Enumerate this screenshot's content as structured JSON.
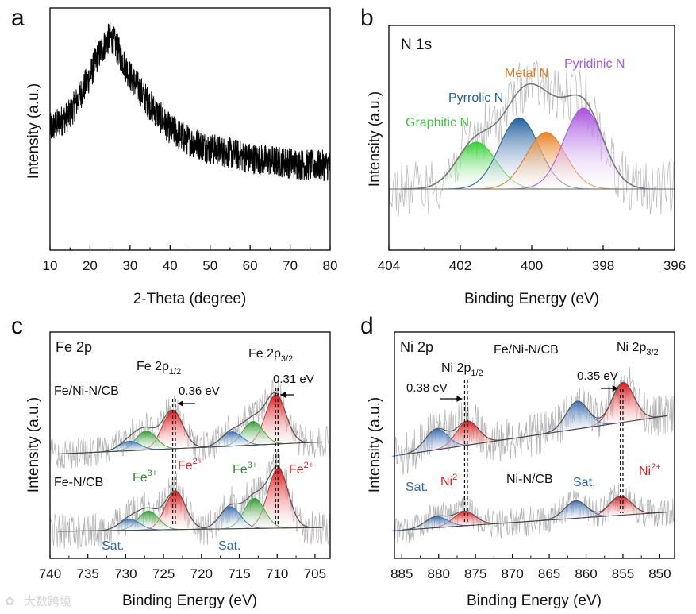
{
  "watermark": {
    "text": "大数跨境"
  },
  "chart_data": [
    {
      "panel": "a",
      "type": "line",
      "xlabel": "2-Theta (degree)",
      "ylabel": "Intensity (a.u.)",
      "xlim": [
        10,
        80
      ],
      "xticks": [
        "10",
        "20",
        "30",
        "40",
        "50",
        "60",
        "70",
        "80"
      ],
      "series": [
        {
          "x": [
            10,
            15,
            20,
            22,
            24,
            25,
            26,
            28,
            30,
            35,
            40,
            45,
            50,
            55,
            60,
            65,
            70,
            75,
            80
          ],
          "y": [
            0.5,
            0.56,
            0.72,
            0.8,
            0.86,
            0.88,
            0.86,
            0.79,
            0.72,
            0.6,
            0.5,
            0.45,
            0.42,
            0.4,
            0.38,
            0.37,
            0.36,
            0.35,
            0.35
          ]
        }
      ],
      "color": "#000000"
    },
    {
      "panel": "b",
      "type": "line",
      "title": "N 1s",
      "xlabel": "Binding Energy (eV)",
      "ylabel": "Intensity (a.u.)",
      "xlim": [
        404,
        396
      ],
      "xticks": [
        "404",
        "402",
        "400",
        "398",
        "396"
      ],
      "series": [
        {
          "name": "Graphitic N",
          "center": 401.55,
          "height": 0.58,
          "color": "#3ec93e"
        },
        {
          "name": "Pyrrolic N",
          "center": 400.35,
          "height": 0.88,
          "color": "#1f5e9c"
        },
        {
          "name": "Metal N",
          "center": 399.6,
          "height": 0.7,
          "color": "#e07a22"
        },
        {
          "name": "Pyridinic N",
          "center": 398.55,
          "height": 1.0,
          "color": "#a855e0"
        }
      ],
      "envelope_color": "#777777"
    },
    {
      "panel": "c",
      "type": "line",
      "title": "Fe 2p",
      "xlabel": "Binding Energy (eV)",
      "ylabel": "Intensity (a.u.)",
      "xlim": [
        740,
        703
      ],
      "xticks": [
        "740",
        "735",
        "730",
        "725",
        "720",
        "715",
        "710",
        "705"
      ],
      "samples": [
        "Fe/Ni-N/CB",
        "Fe-N/CB"
      ],
      "peaks": {
        "Fe/Ni-N/CB": [
          {
            "name": "Fe2+",
            "center": 723.8,
            "color": "#e02020"
          },
          {
            "name": "Fe3+",
            "center": 727.3,
            "color": "#3aa53a"
          },
          {
            "name": "Sat.",
            "center": 729.5,
            "color": "#3a73b8"
          },
          {
            "name": "Fe2+",
            "center": 710.2,
            "color": "#e02020"
          },
          {
            "name": "Fe3+",
            "center": 713.2,
            "color": "#3aa53a"
          },
          {
            "name": "Sat.",
            "center": 716.0,
            "color": "#3a73b8"
          }
        ],
        "Fe-N/CB": [
          {
            "name": "Fe2+",
            "center": 723.44,
            "color": "#e02020"
          },
          {
            "name": "Fe3+",
            "center": 727.0,
            "color": "#3aa53a"
          },
          {
            "name": "Sat.",
            "center": 729.5,
            "color": "#3a73b8"
          },
          {
            "name": "Fe2+",
            "center": 709.89,
            "color": "#e02020"
          },
          {
            "name": "Fe3+",
            "center": 713.0,
            "color": "#3aa53a"
          },
          {
            "name": "Sat.",
            "center": 716.2,
            "color": "#3a73b8"
          }
        ]
      },
      "annotations": [
        {
          "text": "Fe 2p",
          "sub": "1/2"
        },
        {
          "text": "Fe 2p",
          "sub": "3/2"
        },
        {
          "text": "0.36 eV"
        },
        {
          "text": "0.31 eV"
        },
        {
          "text": "Fe",
          "sup": "3+"
        },
        {
          "text": "Fe",
          "sup": "2+"
        },
        {
          "text": "Sat."
        }
      ]
    },
    {
      "panel": "d",
      "type": "line",
      "title": "Ni 2p",
      "xlabel": "Binding Energy (eV)",
      "ylabel": "Intensity (a.u.)",
      "xlim": [
        886,
        848
      ],
      "xticks": [
        "885",
        "880",
        "875",
        "870",
        "865",
        "860",
        "855",
        "850"
      ],
      "samples": [
        "Fe/Ni-N/CB",
        "Ni-N/CB"
      ],
      "peaks": {
        "Fe/Ni-N/CB": [
          {
            "name": "Ni2+",
            "center": 876.1,
            "color": "#e02020"
          },
          {
            "name": "Sat.",
            "center": 880.3,
            "color": "#3a73b8"
          },
          {
            "name": "Ni2+",
            "center": 855.0,
            "color": "#e02020"
          },
          {
            "name": "Sat.",
            "center": 861.2,
            "color": "#3a73b8"
          }
        ],
        "Ni-N/CB": [
          {
            "name": "Ni2+",
            "center": 876.48,
            "color": "#e02020"
          },
          {
            "name": "Sat.",
            "center": 880.3,
            "color": "#3a73b8"
          },
          {
            "name": "Ni2+",
            "center": 855.35,
            "color": "#e02020"
          },
          {
            "name": "Sat.",
            "center": 861.4,
            "color": "#3a73b8"
          }
        ]
      },
      "annotations": [
        {
          "text": "Ni 2p",
          "sub": "1/2"
        },
        {
          "text": "Ni 2p",
          "sub": "3/2"
        },
        {
          "text": "0.38 eV"
        },
        {
          "text": "0.35 eV"
        },
        {
          "text": "Ni",
          "sup": "2+"
        },
        {
          "text": "Sat."
        }
      ]
    }
  ]
}
